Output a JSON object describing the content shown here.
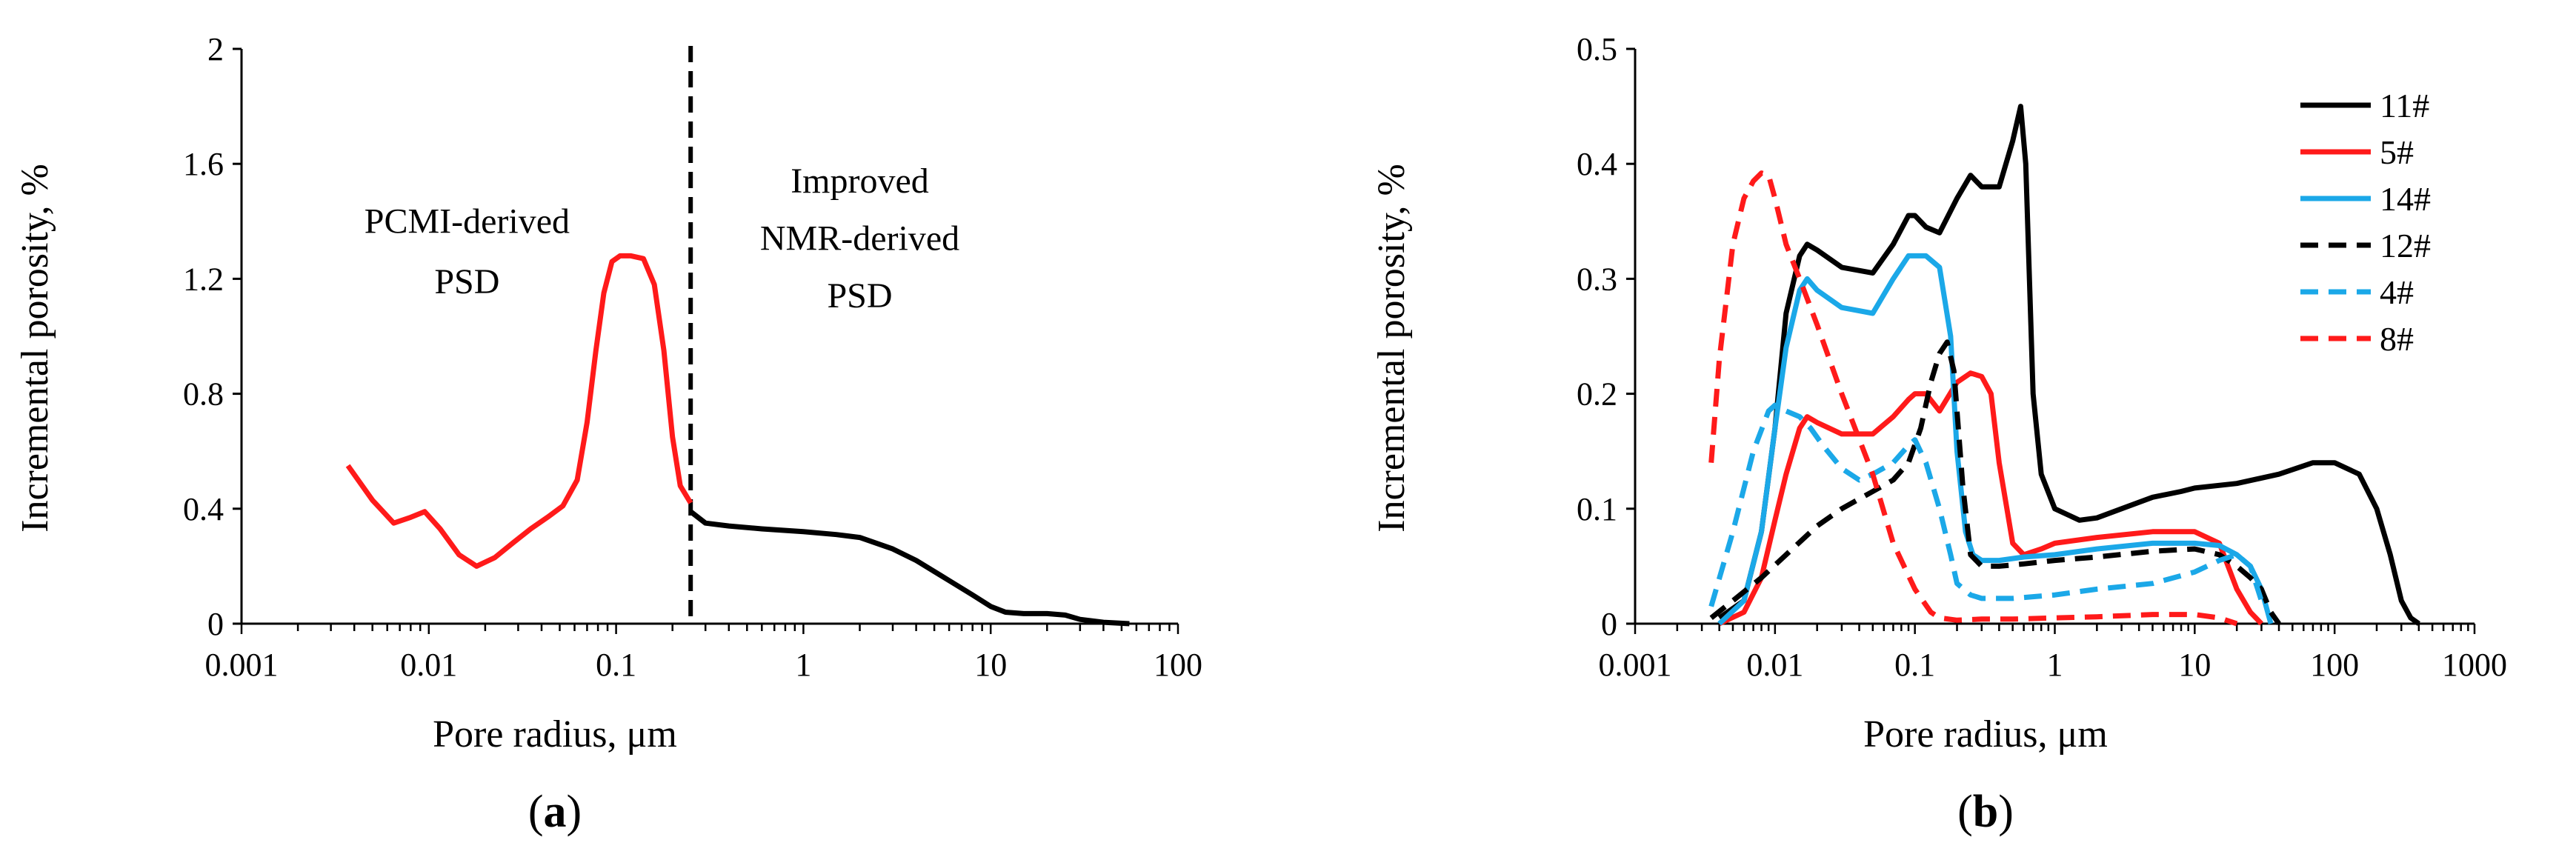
{
  "colors": {
    "black": "#000000",
    "red": "#ff1a1a",
    "blue": "#1ba8e8"
  },
  "panels": [
    {
      "label_open": "(",
      "label_letter": "a",
      "label_close": ")"
    },
    {
      "label_open": "(",
      "label_letter": "b",
      "label_close": ")"
    }
  ],
  "chart_data": [
    {
      "type": "line",
      "id": "a",
      "xscale": "log",
      "xlim": [
        0.001,
        100
      ],
      "ylim": [
        0,
        2
      ],
      "xticks": [
        "0.001",
        "0.01",
        "0.1",
        "1",
        "10",
        "100"
      ],
      "xtick_values": [
        0.001,
        0.01,
        0.1,
        1,
        10,
        100
      ],
      "yticks": [
        "0",
        "0.4",
        "0.8",
        "1.2",
        "1.6",
        "2"
      ],
      "ytick_values": [
        0,
        0.4,
        0.8,
        1.2,
        1.6,
        2
      ],
      "xlabel": "Pore radius, μm",
      "ylabel": "Incremental porosity, %",
      "annotations": [
        {
          "lines": [
            "PCMI-derived",
            "PSD"
          ],
          "x": 0.016,
          "y": [
            1.36,
            1.15
          ]
        },
        {
          "lines": [
            "Improved",
            "NMR-derived",
            "PSD"
          ],
          "x": 2.0,
          "y": [
            1.5,
            1.3,
            1.1
          ]
        }
      ],
      "cutoff": {
        "x": 0.25,
        "style": "dashed",
        "color": "black"
      },
      "series": [
        {
          "name": "PCMI-derived PSD",
          "color": "red",
          "dash": false,
          "x": [
            0.0037,
            0.005,
            0.0065,
            0.008,
            0.0095,
            0.0115,
            0.0145,
            0.018,
            0.0225,
            0.028,
            0.035,
            0.043,
            0.052,
            0.062,
            0.07,
            0.078,
            0.086,
            0.095,
            0.105,
            0.12,
            0.14,
            0.16,
            0.18,
            0.2,
            0.22,
            0.25
          ],
          "y": [
            0.55,
            0.43,
            0.35,
            0.37,
            0.39,
            0.33,
            0.24,
            0.2,
            0.23,
            0.28,
            0.33,
            0.37,
            0.41,
            0.5,
            0.7,
            0.95,
            1.15,
            1.26,
            1.28,
            1.28,
            1.27,
            1.18,
            0.95,
            0.65,
            0.48,
            0.42
          ]
        },
        {
          "name": "Improved NMR-derived PSD",
          "color": "black",
          "dash": false,
          "x": [
            0.25,
            0.3,
            0.4,
            0.6,
            1,
            1.5,
            2,
            3,
            4,
            6,
            8,
            10,
            12,
            15,
            20,
            25,
            30,
            40,
            55
          ],
          "y": [
            0.39,
            0.35,
            0.34,
            0.33,
            0.32,
            0.31,
            0.3,
            0.26,
            0.22,
            0.15,
            0.1,
            0.06,
            0.04,
            0.035,
            0.035,
            0.03,
            0.015,
            0.005,
            0.0
          ]
        }
      ]
    },
    {
      "type": "line",
      "id": "b",
      "xscale": "log",
      "xlim": [
        0.001,
        1000
      ],
      "ylim": [
        0,
        0.5
      ],
      "xticks": [
        "0.001",
        "0.01",
        "0.1",
        "1",
        "10",
        "100",
        "1000"
      ],
      "xtick_values": [
        0.001,
        0.01,
        0.1,
        1,
        10,
        100,
        1000
      ],
      "yticks": [
        "0",
        "0.1",
        "0.2",
        "0.3",
        "0.4",
        "0.5"
      ],
      "ytick_values": [
        0,
        0.1,
        0.2,
        0.3,
        0.4,
        0.5
      ],
      "xlabel": "Pore radius, μm",
      "ylabel": "Incremental porosity, %",
      "legend_position": "top-right",
      "series": [
        {
          "name": "11#",
          "color": "black",
          "dash": false,
          "x": [
            0.004,
            0.006,
            0.008,
            0.01,
            0.012,
            0.015,
            0.017,
            0.02,
            0.03,
            0.05,
            0.07,
            0.09,
            0.1,
            0.12,
            0.15,
            0.2,
            0.25,
            0.3,
            0.4,
            0.5,
            0.57,
            0.62,
            0.7,
            0.8,
            1,
            1.5,
            2,
            3,
            5,
            8,
            10,
            20,
            40,
            70,
            100,
            150,
            200,
            250,
            300,
            350,
            400
          ],
          "y": [
            0.005,
            0.02,
            0.08,
            0.17,
            0.27,
            0.32,
            0.33,
            0.325,
            0.31,
            0.305,
            0.33,
            0.355,
            0.355,
            0.345,
            0.34,
            0.37,
            0.39,
            0.38,
            0.38,
            0.42,
            0.45,
            0.4,
            0.2,
            0.13,
            0.1,
            0.09,
            0.092,
            0.1,
            0.11,
            0.115,
            0.118,
            0.122,
            0.13,
            0.14,
            0.14,
            0.13,
            0.1,
            0.06,
            0.02,
            0.005,
            0.0
          ]
        },
        {
          "name": "5#",
          "color": "red",
          "dash": false,
          "x": [
            0.004,
            0.006,
            0.008,
            0.01,
            0.012,
            0.015,
            0.017,
            0.02,
            0.03,
            0.05,
            0.07,
            0.09,
            0.1,
            0.12,
            0.15,
            0.2,
            0.25,
            0.3,
            0.35,
            0.4,
            0.5,
            0.6,
            0.8,
            1,
            2,
            5,
            10,
            15,
            20,
            25,
            30
          ],
          "y": [
            0.0,
            0.01,
            0.04,
            0.09,
            0.13,
            0.17,
            0.18,
            0.175,
            0.165,
            0.165,
            0.18,
            0.195,
            0.2,
            0.2,
            0.185,
            0.21,
            0.218,
            0.215,
            0.2,
            0.14,
            0.07,
            0.06,
            0.065,
            0.07,
            0.075,
            0.08,
            0.08,
            0.07,
            0.03,
            0.01,
            0.0
          ]
        },
        {
          "name": "14#",
          "color": "blue",
          "dash": false,
          "x": [
            0.004,
            0.006,
            0.008,
            0.01,
            0.012,
            0.015,
            0.017,
            0.02,
            0.03,
            0.05,
            0.07,
            0.09,
            0.1,
            0.12,
            0.15,
            0.18,
            0.2,
            0.23,
            0.26,
            0.3,
            0.4,
            0.6,
            1,
            2,
            5,
            10,
            15,
            20,
            25,
            30,
            35
          ],
          "y": [
            0.0,
            0.02,
            0.08,
            0.17,
            0.24,
            0.29,
            0.3,
            0.29,
            0.275,
            0.27,
            0.3,
            0.32,
            0.32,
            0.32,
            0.31,
            0.25,
            0.15,
            0.08,
            0.06,
            0.055,
            0.055,
            0.058,
            0.06,
            0.065,
            0.07,
            0.07,
            0.068,
            0.06,
            0.05,
            0.03,
            0.0
          ]
        },
        {
          "name": "12#",
          "color": "black",
          "dash": true,
          "x": [
            0.0035,
            0.005,
            0.008,
            0.012,
            0.02,
            0.03,
            0.05,
            0.07,
            0.09,
            0.11,
            0.13,
            0.15,
            0.17,
            0.19,
            0.22,
            0.25,
            0.3,
            0.4,
            0.6,
            1,
            2,
            5,
            10,
            15,
            20,
            25,
            30,
            35,
            40
          ],
          "y": [
            0.005,
            0.02,
            0.04,
            0.06,
            0.085,
            0.1,
            0.115,
            0.125,
            0.14,
            0.17,
            0.21,
            0.235,
            0.245,
            0.22,
            0.12,
            0.06,
            0.05,
            0.05,
            0.052,
            0.055,
            0.058,
            0.063,
            0.065,
            0.06,
            0.05,
            0.04,
            0.03,
            0.01,
            0.0
          ]
        },
        {
          "name": "4#",
          "color": "blue",
          "dash": true,
          "x": [
            0.0035,
            0.005,
            0.007,
            0.009,
            0.01,
            0.012,
            0.015,
            0.018,
            0.022,
            0.03,
            0.04,
            0.05,
            0.07,
            0.09,
            0.1,
            0.12,
            0.15,
            0.18,
            0.2,
            0.25,
            0.3,
            0.5,
            1,
            2,
            5,
            10,
            15,
            20,
            25,
            30
          ],
          "y": [
            0.015,
            0.08,
            0.15,
            0.185,
            0.19,
            0.185,
            0.18,
            0.17,
            0.155,
            0.135,
            0.125,
            0.13,
            0.14,
            0.155,
            0.16,
            0.14,
            0.1,
            0.06,
            0.035,
            0.025,
            0.022,
            0.022,
            0.025,
            0.03,
            0.035,
            0.045,
            0.055,
            0.06,
            0.05,
            0.02
          ]
        },
        {
          "name": "8#",
          "color": "red",
          "dash": true,
          "x": [
            0.0035,
            0.004,
            0.005,
            0.006,
            0.007,
            0.008,
            0.009,
            0.01,
            0.012,
            0.015,
            0.02,
            0.03,
            0.05,
            0.07,
            0.1,
            0.13,
            0.15,
            0.2,
            0.3,
            0.5,
            1,
            2,
            5,
            10,
            15,
            20
          ],
          "y": [
            0.14,
            0.23,
            0.33,
            0.37,
            0.385,
            0.392,
            0.39,
            0.37,
            0.33,
            0.3,
            0.26,
            0.2,
            0.13,
            0.07,
            0.03,
            0.01,
            0.005,
            0.003,
            0.004,
            0.004,
            0.005,
            0.006,
            0.008,
            0.008,
            0.005,
            0.0
          ]
        }
      ]
    }
  ]
}
